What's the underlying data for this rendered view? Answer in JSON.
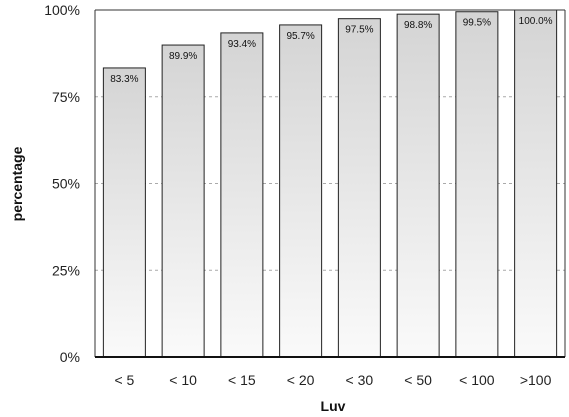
{
  "chart_data": {
    "type": "bar",
    "title": "",
    "xlabel": "Luv",
    "ylabel": "percentage",
    "categories": [
      "< 5",
      "< 10",
      "< 15",
      "< 20",
      "< 30",
      "< 50",
      "< 100",
      ">100"
    ],
    "values": [
      83.3,
      89.9,
      93.4,
      95.7,
      97.5,
      98.8,
      99.5,
      100.0
    ],
    "data_labels": [
      "83.3%",
      "89.9%",
      "93.4%",
      "95.7%",
      "97.5%",
      "98.8%",
      "99.5%",
      "100.0%"
    ],
    "ylim": [
      0,
      100
    ],
    "yticks": [
      0,
      25,
      50,
      75,
      100
    ],
    "ytick_labels": [
      "0%",
      "25%",
      "50%",
      "75%",
      "100%"
    ],
    "grid": "horizontal dashed",
    "legend": "none",
    "colors": {
      "bar_top": "#d4d4d4",
      "bar_bottom": "#fafafa",
      "bar_stroke": "#222222",
      "grid": "#aaaaaa"
    }
  }
}
